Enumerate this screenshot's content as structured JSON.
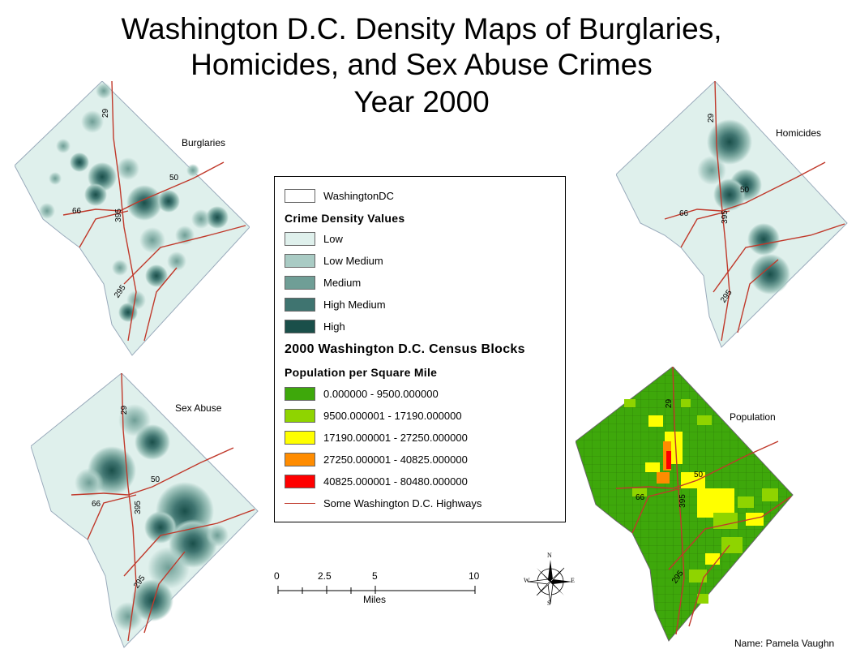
{
  "title": {
    "line1": "Washington D.C. Density Maps of Burglaries,",
    "line2": "Homicides, and Sex Abuse Crimes",
    "line3": "Year 2000"
  },
  "maps": {
    "burglaries": {
      "label": "Burglaries"
    },
    "homicides": {
      "label": "Homicides"
    },
    "sex_abuse": {
      "label": "Sex Abuse"
    },
    "population": {
      "label": "Population"
    }
  },
  "highway_labels": {
    "h29": "29",
    "h50": "50",
    "h66": "66",
    "h395": "395",
    "h295": "295"
  },
  "legend": {
    "boundary": {
      "label": "WashingtonDC",
      "color": "#ffffff"
    },
    "crime_heading": "Crime Density Values",
    "crime_classes": [
      {
        "label": "Low",
        "color": "#dff0ec"
      },
      {
        "label": "Low Medium",
        "color": "#a9cbc4"
      },
      {
        "label": "Medium",
        "color": "#6f9e96"
      },
      {
        "label": "High Medium",
        "color": "#3f7470"
      },
      {
        "label": "High",
        "color": "#1a4f4a"
      }
    ],
    "census_heading": "2000 Washington D.C. Census Blocks",
    "population_heading": "Population per Square Mile",
    "population_classes": [
      {
        "label": "0.000000 - 9500.000000",
        "color": "#3ea80b"
      },
      {
        "label": "9500.000001 - 17190.000000",
        "color": "#8fd400"
      },
      {
        "label": "17190.000001 - 27250.000000",
        "color": "#ffff00"
      },
      {
        "label": "27250.000001 - 40825.000000",
        "color": "#ff8c00"
      },
      {
        "label": "40825.000001 - 80480.000000",
        "color": "#ff0000"
      }
    ],
    "highways": {
      "label": "Some Washington D.C. Highways",
      "color": "#c0392b"
    }
  },
  "scalebar": {
    "ticks": [
      "0",
      "2.5",
      "5",
      "10"
    ],
    "unit": "Miles"
  },
  "compass": {
    "n": "N",
    "s": "S",
    "e": "E",
    "w": "W"
  },
  "author": "Name: Pamela Vaughn"
}
